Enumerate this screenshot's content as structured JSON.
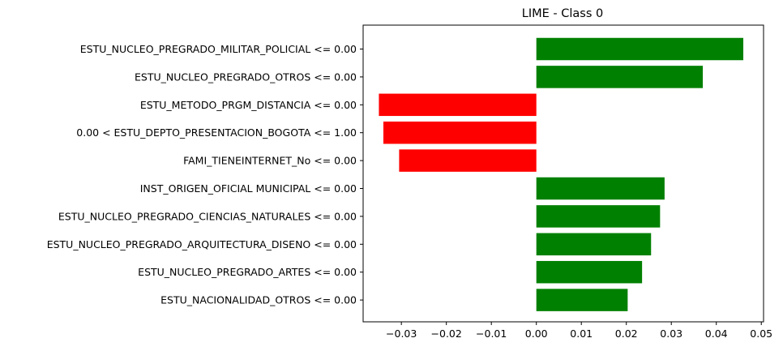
{
  "chart_data": {
    "type": "bar",
    "orientation": "horizontal",
    "title": "LIME - Class 0",
    "xlabel": "",
    "ylabel": "",
    "categories": [
      "ESTU_NUCLEO_PREGRADO_MILITAR_POLICIAL <= 0.00",
      "ESTU_NUCLEO_PREGRADO_OTROS <= 0.00",
      "ESTU_METODO_PRGM_DISTANCIA <= 0.00",
      "0.00 < ESTU_DEPTO_PRESENTACION_BOGOTA <= 1.00",
      "FAMI_TIENEINTERNET_No <= 0.00",
      "INST_ORIGEN_OFICIAL MUNICIPAL <= 0.00",
      "ESTU_NUCLEO_PREGRADO_CIENCIAS_NATURALES <= 0.00",
      "ESTU_NUCLEO_PREGRADO_ARQUITECTURA_DISENO <= 0.00",
      "ESTU_NUCLEO_PREGRADO_ARTES <= 0.00",
      "ESTU_NACIONALIDAD_OTROS <= 0.00"
    ],
    "values": [
      0.046,
      0.037,
      -0.035,
      -0.034,
      -0.0305,
      0.0285,
      0.0275,
      0.0255,
      0.0235,
      0.0203
    ],
    "xlim": [
      -0.0385,
      0.0505
    ],
    "xticks": [
      -0.03,
      -0.02,
      -0.01,
      0.0,
      0.01,
      0.02,
      0.03,
      0.04,
      0.05
    ],
    "xtick_labels": [
      "−0.03",
      "−0.02",
      "−0.01",
      "0.00",
      "0.01",
      "0.02",
      "0.03",
      "0.04",
      "0.05"
    ],
    "grid": false,
    "legend": "none",
    "colors": {
      "positive": "#008000",
      "negative": "#ff0000",
      "axis": "#000000"
    }
  }
}
